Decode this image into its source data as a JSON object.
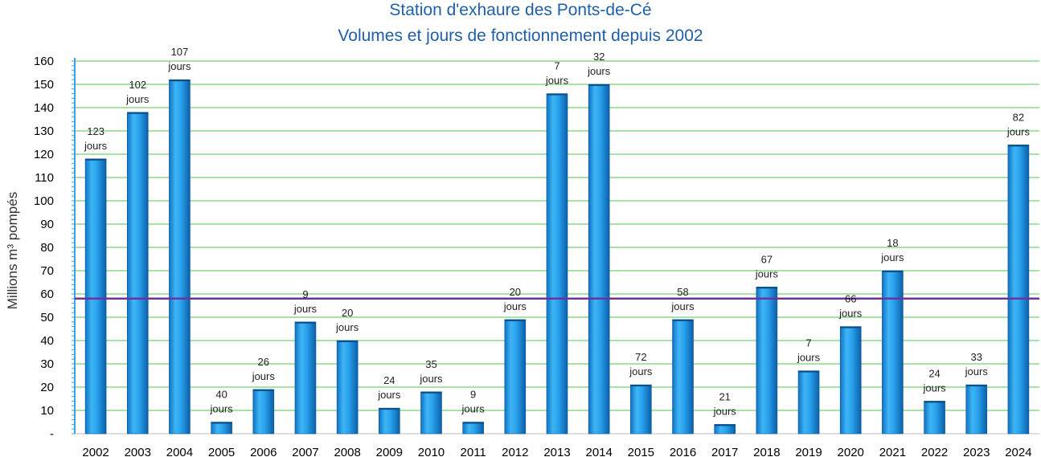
{
  "chart_data": {
    "type": "bar",
    "title": "Station d'exhaure des Ponts-de-Cé",
    "subtitle": "Volumes et jours de fonctionnement depuis 2002",
    "ylabel": "Millions m³ pompés",
    "xlabel": "",
    "ylim": [
      0,
      160
    ],
    "ytick_step": 10,
    "yticks_labels": [
      "-",
      "10",
      "20",
      "30",
      "40",
      "50",
      "60",
      "70",
      "80",
      "90",
      "100",
      "110",
      "120",
      "130",
      "140",
      "150",
      "160"
    ],
    "categories": [
      "2002",
      "2003",
      "2004",
      "2005",
      "2006",
      "2007",
      "2008",
      "2009",
      "2010",
      "2011",
      "2012",
      "2013",
      "2014",
      "2015",
      "2016",
      "2017",
      "2018",
      "2019",
      "2020",
      "2021",
      "2022",
      "2023",
      "2024"
    ],
    "values": [
      118,
      138,
      152,
      5,
      19,
      48,
      40,
      11,
      18,
      5,
      49,
      146,
      150,
      21,
      49,
      4,
      63,
      27,
      46,
      70,
      14,
      21,
      124
    ],
    "day_counts": [
      "123",
      "102",
      "107",
      "40",
      "26",
      "9",
      "20",
      "24",
      "35",
      "9",
      "20",
      "7",
      "32",
      "72",
      "58",
      "21",
      "67",
      "7",
      "66",
      "18",
      "24",
      "33",
      "82"
    ],
    "day_unit": "jours",
    "reference_line": {
      "value": 58,
      "color": "#7030a0"
    },
    "bar_color": "#1e9be8",
    "grid": true,
    "gridline_color": "#4fc64f"
  }
}
